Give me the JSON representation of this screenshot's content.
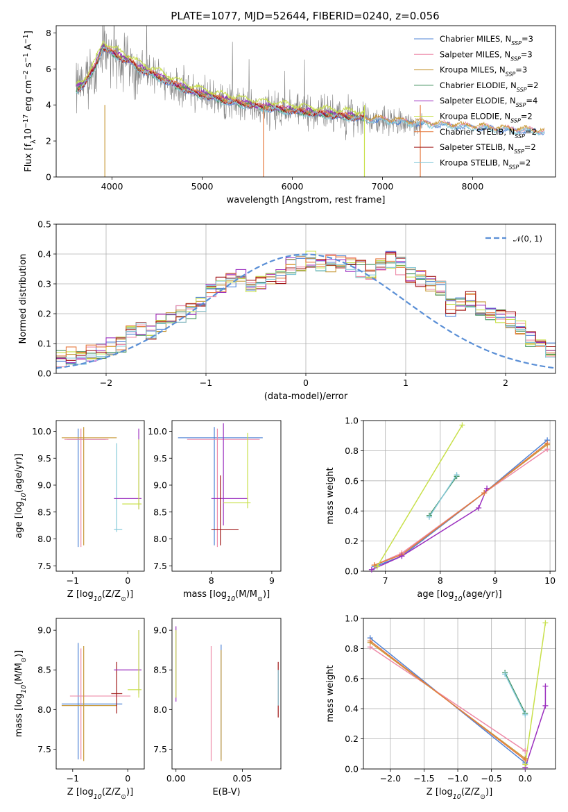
{
  "figure": {
    "title": "PLATE=1077, MJD=52644, FIBERID=0240, z=0.056"
  },
  "palette": {
    "Chabrier MILES": "#4f83d6",
    "Salpeter MILES": "#ee8aa8",
    "Kroupa MILES": "#c89a3a",
    "Chabrier ELODIE": "#3f8f5a",
    "Salpeter ELODIE": "#9b2fbf",
    "Kroupa ELODIE": "#c8e04a",
    "Chabrier STELIB": "#e57a3f",
    "Salpeter STELIB": "#a01818",
    "Kroupa STELIB": "#86c9d9",
    "data": "#808080",
    "normal": "#5a8fd6"
  },
  "chart_data": [
    {
      "id": "spectrum",
      "type": "line",
      "xlabel": "wavelength [Angstrom, rest frame]",
      "ylabel": "Flux [f$_\\lambda$10$^{-17}$ erg cm$^{-2}$ s$^{-1}$ A$^{-1}$]",
      "ylabel_parts": [
        "Flux [f",
        "λ",
        "10",
        "−17",
        " erg cm",
        "−2",
        " s",
        "−1",
        " A",
        "−1",
        "]"
      ],
      "xlim": [
        3380,
        8920
      ],
      "ylim": [
        0,
        8.4
      ],
      "xticks": [
        4000,
        5000,
        6000,
        7000,
        8000
      ],
      "yticks": [
        0,
        2,
        4,
        6,
        8
      ],
      "grid": false,
      "legend_position": "top-right",
      "legend": [
        {
          "label": "Chabrier MILES",
          "nssp": "3"
        },
        {
          "label": "Salpeter MILES",
          "nssp": "3"
        },
        {
          "label": "Kroupa MILES",
          "nssp": "3"
        },
        {
          "label": "Chabrier ELODIE",
          "nssp": "2"
        },
        {
          "label": "Salpeter ELODIE",
          "nssp": "4"
        },
        {
          "label": "Kroupa ELODIE",
          "nssp": "2"
        },
        {
          "label": "Chabrier STELIB",
          "nssp": "2"
        },
        {
          "label": "Salpeter STELIB",
          "nssp": "2"
        },
        {
          "label": "Kroupa STELIB",
          "nssp": "2"
        }
      ],
      "model_continuum": {
        "x": [
          3600,
          3700,
          3800,
          3900,
          4000,
          4100,
          4200,
          4300,
          4500,
          4700,
          4900,
          5200,
          5500,
          5800,
          6100,
          6400,
          6700,
          7000,
          7300,
          7600,
          8000,
          8400,
          8800
        ],
        "y": [
          4.8,
          5.2,
          6.0,
          7.2,
          6.9,
          6.6,
          6.4,
          6.0,
          5.6,
          5.1,
          4.7,
          4.3,
          4.0,
          3.8,
          3.6,
          3.45,
          3.3,
          3.2,
          3.05,
          2.95,
          2.8,
          2.65,
          2.55
        ]
      },
      "data_spectrum": {
        "wavelength_range": [
          3600,
          7440
        ],
        "noise_amplitude": 1.6
      }
    },
    {
      "id": "residuals",
      "type": "line",
      "xlabel": "(data-model)/error",
      "ylabel": "Normed distribution",
      "xlim": [
        -2.5,
        2.5
      ],
      "ylim": [
        0,
        0.5
      ],
      "xticks": [
        -2,
        -1,
        0,
        1,
        2
      ],
      "yticks": [
        0.0,
        0.1,
        0.2,
        0.3,
        0.4,
        0.5
      ],
      "grid": true,
      "legend_position": "top-right",
      "legend": [
        {
          "label": "𝒩(0, 1)"
        }
      ],
      "histogram_envelope": {
        "bin_edges_start": -2.5,
        "bin_width": 0.1,
        "values": [
          0.05,
          0.06,
          0.06,
          0.07,
          0.08,
          0.09,
          0.1,
          0.14,
          0.15,
          0.14,
          0.17,
          0.19,
          0.2,
          0.21,
          0.23,
          0.27,
          0.3,
          0.31,
          0.32,
          0.29,
          0.3,
          0.31,
          0.33,
          0.36,
          0.37,
          0.38,
          0.36,
          0.37,
          0.38,
          0.37,
          0.35,
          0.34,
          0.37,
          0.38,
          0.36,
          0.33,
          0.32,
          0.3,
          0.28,
          0.22,
          0.24,
          0.25,
          0.22,
          0.2,
          0.19,
          0.18,
          0.15,
          0.12,
          0.1,
          0.08
        ]
      }
    },
    {
      "id": "Z_vs_age",
      "type": "scatter",
      "xlabel": "Z [log$_{10}$(Z/Z$_\\odot$)]",
      "ylabel": "age  [log$_{10}$(age/yr)]",
      "xlim": [
        -1.3,
        0.3
      ],
      "ylim": [
        7.4,
        10.2
      ],
      "xticks": [
        -1,
        0
      ],
      "yticks": [
        7.5,
        8.0,
        8.5,
        9.0,
        9.5,
        10.0
      ],
      "grid": false,
      "errorbars": [
        {
          "x": -0.9,
          "y": 9.85,
          "xerr": [
            0.2,
            0.5
          ],
          "yerr": [
            2.0,
            0.2
          ],
          "color": "#4f83d6"
        },
        {
          "x": -0.85,
          "y": 9.85,
          "xerr": [
            0.3,
            0.5
          ],
          "yerr": [
            2.0,
            0.2
          ],
          "color": "#ee8aa8"
        },
        {
          "x": -0.8,
          "y": 9.88,
          "xerr": [
            0.4,
            0.6
          ],
          "yerr": [
            2.0,
            0.2
          ],
          "color": "#c89a3a"
        },
        {
          "x": -0.2,
          "y": 8.18,
          "xerr": [
            0.05,
            0.1
          ],
          "yerr": [
            0.05,
            1.6
          ],
          "color": "#86c9d9"
        },
        {
          "x": 0.2,
          "y": 8.75,
          "xerr": [
            0.45,
            0.05
          ],
          "yerr": [
            0.2,
            1.3
          ],
          "color": "#9b2fbf"
        },
        {
          "x": 0.2,
          "y": 8.65,
          "xerr": [
            0.3,
            0.05
          ],
          "yerr": [
            0.1,
            1.2
          ],
          "color": "#c8e04a"
        }
      ]
    },
    {
      "id": "mass_vs_age",
      "type": "scatter",
      "xlabel": "mass [log$_{10}$(M/M$_\\odot$)]",
      "ylabel": "",
      "xlim": [
        7.35,
        9.15
      ],
      "ylim": [
        7.4,
        10.2
      ],
      "xticks": [
        8,
        9
      ],
      "yticks": [
        7.5,
        8.0,
        8.5,
        9.0,
        9.5,
        10.0
      ],
      "grid": false,
      "errorbars": [
        {
          "x": 8.05,
          "y": 9.88,
          "xerr": [
            0.6,
            0.8
          ],
          "yerr": [
            2.0,
            0.2
          ],
          "color": "#4f83d6"
        },
        {
          "x": 8.1,
          "y": 9.85,
          "xerr": [
            0.5,
            0.7
          ],
          "yerr": [
            2.0,
            0.2
          ],
          "color": "#ee8aa8"
        },
        {
          "x": 8.2,
          "y": 8.75,
          "xerr": [
            0.2,
            0.4
          ],
          "yerr": [
            0.5,
            1.4
          ],
          "color": "#9b2fbf"
        },
        {
          "x": 8.15,
          "y": 8.18,
          "xerr": [
            0.15,
            0.3
          ],
          "yerr": [
            0.3,
            1.0
          ],
          "color": "#a01818"
        },
        {
          "x": 8.6,
          "y": 8.67,
          "xerr": [
            0.4,
            0.05
          ],
          "yerr": [
            0.1,
            1.3
          ],
          "color": "#c8e04a"
        }
      ]
    },
    {
      "id": "age_vs_mass_weight",
      "type": "line",
      "xlabel": "age  [log$_{10}$(age/yr)]",
      "ylabel": "mass weight",
      "xlim": [
        6.6,
        10.1
      ],
      "ylim": [
        0,
        1.0
      ],
      "xticks": [
        7,
        8,
        9,
        10
      ],
      "yticks": [
        0.0,
        0.2,
        0.4,
        0.6,
        0.8,
        1.0
      ],
      "grid": true,
      "series": [
        {
          "name": "Chabrier MILES",
          "x": [
            6.8,
            7.3,
            8.8,
            9.95
          ],
          "y": [
            0.03,
            0.1,
            0.52,
            0.87
          ]
        },
        {
          "name": "Salpeter MILES",
          "x": [
            6.8,
            7.3,
            8.8,
            9.95
          ],
          "y": [
            0.04,
            0.12,
            0.52,
            0.81
          ]
        },
        {
          "name": "Kroupa MILES",
          "x": [
            6.8,
            7.3,
            8.8,
            9.95
          ],
          "y": [
            0.04,
            0.11,
            0.52,
            0.84
          ]
        },
        {
          "name": "Chabrier STELIB",
          "x": [
            6.8,
            7.3,
            8.8,
            9.95
          ],
          "y": [
            0.04,
            0.11,
            0.52,
            0.85
          ]
        },
        {
          "name": "Salpeter ELODIE",
          "x": [
            6.75,
            7.3,
            8.7,
            8.85
          ],
          "y": [
            0.01,
            0.1,
            0.42,
            0.55
          ]
        },
        {
          "name": "Chabrier ELODIE",
          "x": [
            7.8,
            8.3
          ],
          "y": [
            0.37,
            0.63
          ]
        },
        {
          "name": "Kroupa STELIB",
          "x": [
            7.8,
            8.3
          ],
          "y": [
            0.36,
            0.64
          ]
        },
        {
          "name": "Kroupa ELODIE",
          "x": [
            6.85,
            8.4
          ],
          "y": [
            0.03,
            0.97
          ]
        }
      ]
    },
    {
      "id": "Z_vs_mass",
      "type": "scatter",
      "xlabel": "Z [log$_{10}$(Z/Z$_\\odot$)]",
      "ylabel": "mass [log$_{10}$(M/M$_\\odot$)]",
      "xlim": [
        -1.3,
        0.3
      ],
      "ylim": [
        7.25,
        9.15
      ],
      "xticks": [
        -1,
        0
      ],
      "yticks": [
        7.5,
        8.0,
        8.5,
        9.0
      ],
      "grid": false,
      "errorbars": [
        {
          "x": -0.9,
          "y": 8.07,
          "xerr": [
            0.3,
            0.8
          ],
          "yerr": [
            0.7,
            0.77
          ],
          "color": "#4f83d6"
        },
        {
          "x": -0.85,
          "y": 8.17,
          "xerr": [
            0.2,
            0.9
          ],
          "yerr": [
            0.8,
            0.6
          ],
          "color": "#ee8aa8"
        },
        {
          "x": -0.8,
          "y": 8.05,
          "xerr": [
            0.4,
            0.6
          ],
          "yerr": [
            0.7,
            0.75
          ],
          "color": "#c89a3a"
        },
        {
          "x": -0.2,
          "y": 8.2,
          "xerr": [
            0.1,
            0.1
          ],
          "yerr": [
            0.25,
            0.4
          ],
          "color": "#a01818"
        },
        {
          "x": 0.2,
          "y": 8.5,
          "xerr": [
            0.45,
            0.05
          ],
          "yerr": [
            0.3,
            0.5
          ],
          "color": "#9b2fbf"
        },
        {
          "x": 0.2,
          "y": 8.25,
          "xerr": [
            0.2,
            0.05
          ],
          "yerr": [
            0.1,
            0.75
          ],
          "color": "#c8e04a"
        }
      ]
    },
    {
      "id": "EBV_vs_mass",
      "type": "scatter",
      "xlabel": "E(B-V)",
      "ylabel": "",
      "xlim": [
        -0.003,
        0.079
      ],
      "ylim": [
        7.25,
        9.15
      ],
      "xticks": [
        0.0,
        0.05
      ],
      "yticks": [
        7.5,
        8.0,
        8.5,
        9.0
      ],
      "grid": false,
      "errorbars": [
        {
          "x": 0.0,
          "y": 8.6,
          "xerr": [
            0,
            0
          ],
          "yerr": [
            0.5,
            0.45
          ],
          "color": "#9b2fbf"
        },
        {
          "x": 0.0,
          "y": 8.6,
          "xerr": [
            0,
            0
          ],
          "yerr": [
            0.45,
            0.4
          ],
          "color": "#c8e04a"
        },
        {
          "x": 0.0265,
          "y": 8.05,
          "xerr": [
            0,
            0
          ],
          "yerr": [
            0.7,
            0.75
          ],
          "color": "#ee8aa8"
        },
        {
          "x": 0.034,
          "y": 8.07,
          "xerr": [
            0,
            0
          ],
          "yerr": [
            0.7,
            0.75
          ],
          "color": "#4f83d6"
        },
        {
          "x": 0.034,
          "y": 8.05,
          "xerr": [
            0,
            0
          ],
          "yerr": [
            0.7,
            0.7
          ],
          "color": "#c89a3a"
        },
        {
          "x": 0.077,
          "y": 8.2,
          "xerr": [
            0,
            0
          ],
          "yerr": [
            0.3,
            0.4
          ],
          "color": "#a01818"
        },
        {
          "x": 0.077,
          "y": 8.2,
          "xerr": [
            0,
            0
          ],
          "yerr": [
            0.15,
            0.3
          ],
          "color": "#86c9d9"
        }
      ]
    },
    {
      "id": "Z_vs_mass_weight",
      "type": "line",
      "xlabel": "Z [log$_{10}$(Z/Z$_\\odot$)]",
      "ylabel": "mass weight",
      "xlim": [
        -2.4,
        0.45
      ],
      "ylim": [
        0,
        1.0
      ],
      "xticks": [
        -2.0,
        -1.5,
        -1.0,
        -0.5,
        0.0
      ],
      "yticks": [
        0.0,
        0.2,
        0.4,
        0.6,
        0.8,
        1.0
      ],
      "grid": true,
      "series": [
        {
          "name": "Chabrier MILES",
          "x": [
            -2.3,
            0.0
          ],
          "y": [
            0.87,
            0.04
          ]
        },
        {
          "name": "Salpeter MILES",
          "x": [
            -2.3,
            0.0
          ],
          "y": [
            0.81,
            0.12
          ]
        },
        {
          "name": "Kroupa MILES",
          "x": [
            -2.3,
            0.0
          ],
          "y": [
            0.84,
            0.07
          ]
        },
        {
          "name": "Chabrier STELIB",
          "x": [
            -2.3,
            0.0
          ],
          "y": [
            0.85,
            0.06
          ]
        },
        {
          "name": "Chabrier ELODIE",
          "x": [
            -0.3,
            0.0
          ],
          "y": [
            0.64,
            0.37
          ]
        },
        {
          "name": "Kroupa STELIB",
          "x": [
            -0.3,
            0.0
          ],
          "y": [
            0.63,
            0.36
          ]
        },
        {
          "name": "Salpeter ELODIE",
          "x": [
            0.0,
            0.3,
            0.3
          ],
          "y": [
            0.01,
            0.42,
            0.55
          ]
        },
        {
          "name": "Kroupa ELODIE",
          "x": [
            0.0,
            0.3
          ],
          "y": [
            0.03,
            0.97
          ]
        }
      ]
    }
  ]
}
